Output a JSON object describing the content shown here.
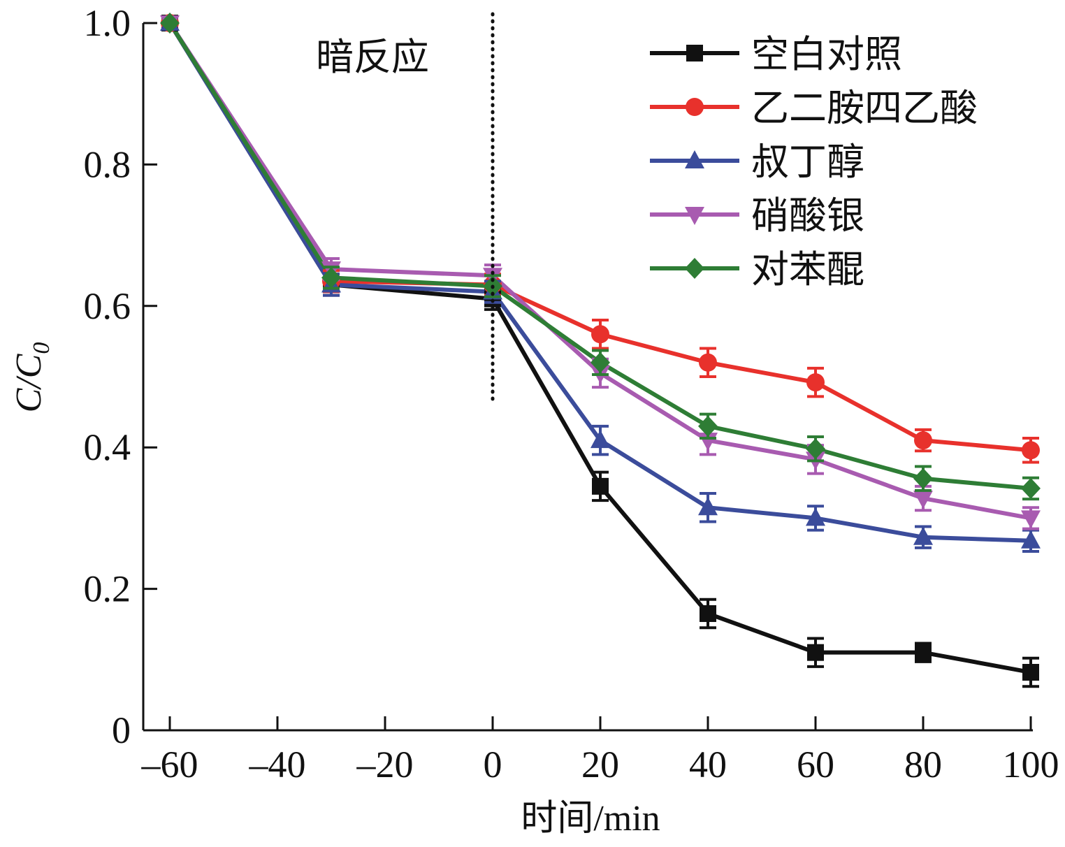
{
  "chart_data": {
    "type": "line",
    "title": "",
    "xlabel": "时间/min",
    "ylabel": "C/C",
    "ylabel_subscript": "0",
    "xlim": [
      -65,
      100
    ],
    "ylim": [
      0,
      1.0
    ],
    "x": [
      -60,
      -30,
      0,
      20,
      40,
      60,
      80,
      100
    ],
    "xticks": [
      -60,
      -40,
      -20,
      0,
      20,
      40,
      60,
      80,
      100
    ],
    "xtick_labels": [
      "–60",
      "–40",
      "–20",
      "0",
      "20",
      "40",
      "60",
      "80",
      "100"
    ],
    "yticks": [
      0,
      0.2,
      0.4,
      0.6,
      0.8,
      1.0
    ],
    "ytick_labels": [
      "0",
      "0.2",
      "0.4",
      "0.6",
      "0.8",
      "1.0"
    ],
    "grid": false,
    "legend_position": "top-right",
    "annotation": {
      "text": "暗反应",
      "divider_x": 0,
      "divider_style": "dotted"
    },
    "series": [
      {
        "name": "空白对照",
        "color": "#111111",
        "marker": "square",
        "values": [
          1.0,
          0.63,
          0.61,
          0.345,
          0.165,
          0.11,
          0.11,
          0.082
        ],
        "errors": [
          0.005,
          0.015,
          0.015,
          0.02,
          0.02,
          0.02,
          0.013,
          0.02
        ]
      },
      {
        "name": "乙二胺四乙酸",
        "color": "#e8312c",
        "marker": "circle",
        "values": [
          1.0,
          0.635,
          0.63,
          0.56,
          0.52,
          0.492,
          0.41,
          0.396
        ],
        "errors": [
          0.005,
          0.015,
          0.015,
          0.02,
          0.02,
          0.02,
          0.015,
          0.017
        ]
      },
      {
        "name": "叔丁醇",
        "color": "#3b4c9b",
        "marker": "triangle-up",
        "values": [
          1.0,
          0.63,
          0.62,
          0.41,
          0.315,
          0.3,
          0.273,
          0.268
        ],
        "errors": [
          0.005,
          0.015,
          0.015,
          0.02,
          0.02,
          0.017,
          0.015,
          0.015
        ]
      },
      {
        "name": "硝酸银",
        "color": "#a85bb0",
        "marker": "triangle-down",
        "values": [
          1.0,
          0.652,
          0.643,
          0.505,
          0.41,
          0.383,
          0.328,
          0.3
        ],
        "errors": [
          0.005,
          0.015,
          0.015,
          0.02,
          0.02,
          0.02,
          0.017,
          0.015
        ]
      },
      {
        "name": "对苯醌",
        "color": "#2e7d35",
        "marker": "diamond",
        "values": [
          1.0,
          0.64,
          0.628,
          0.52,
          0.43,
          0.398,
          0.356,
          0.342
        ],
        "errors": [
          0.005,
          0.015,
          0.015,
          0.017,
          0.017,
          0.017,
          0.017,
          0.015
        ]
      }
    ]
  }
}
